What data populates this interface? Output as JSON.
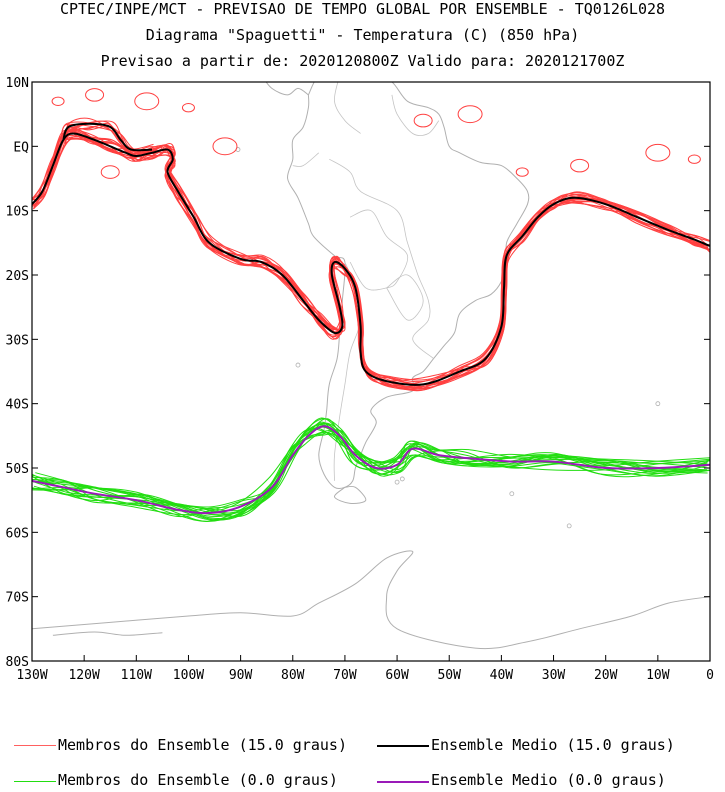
{
  "header": {
    "line1": "CPTEC/INPE/MCT - PREVISAO DE TEMPO GLOBAL POR ENSEMBLE - TQ0126L028",
    "line2": "Diagrama \"Spaguetti\" - Temperatura (C) (850 hPa)",
    "line3": "Previsao a partir de: 2020120800Z  Valido para: 2020121700Z"
  },
  "map": {
    "lat_labels": [
      "10N",
      "EQ",
      "10S",
      "20S",
      "30S",
      "40S",
      "50S",
      "60S",
      "70S",
      "80S"
    ],
    "lon_labels": [
      "130W",
      "120W",
      "110W",
      "100W",
      "90W",
      "80W",
      "70W",
      "60W",
      "50W",
      "40W",
      "30W",
      "20W",
      "10W",
      "0"
    ],
    "extent": {
      "lon": [
        -130,
        0
      ],
      "lat": [
        -80,
        10
      ]
    },
    "colors": {
      "members_15": "#ff4040",
      "mean_15": "#000000",
      "members_0": "#22dd11",
      "mean_0": "#9a1ab8",
      "coast": "#b0b0b0"
    }
  },
  "legend": {
    "members_15_label": "Membros do Ensemble (15.0 graus)",
    "mean_15_label": "Ensemble Medio (15.0 graus)",
    "members_0_label": "Membros do Ensemble (0.0 graus)",
    "mean_0_label": "Ensemble Medio (0.0 graus)"
  }
}
